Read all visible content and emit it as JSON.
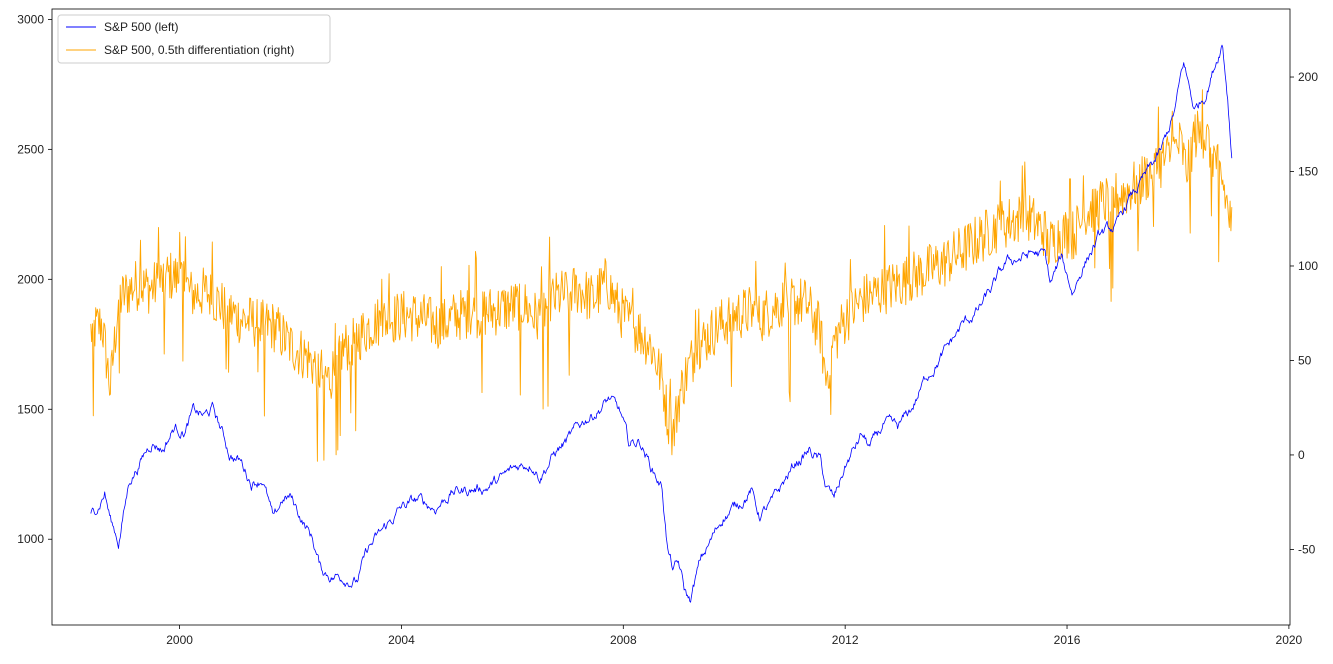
{
  "chart_data": {
    "type": "line",
    "title": "",
    "xlabel": "",
    "ylabel_left": "",
    "ylabel_right": "",
    "x_ticks": [
      "2000",
      "2004",
      "2008",
      "2012",
      "2016",
      "2020"
    ],
    "x_range": [
      1997.7,
      2020.02
    ],
    "left_axis": {
      "range": [
        670,
        3040
      ],
      "ticks": [
        "1000",
        "1500",
        "2000",
        "2500",
        "3000"
      ]
    },
    "right_axis": {
      "range": [
        -90,
        236
      ],
      "ticks": [
        "-50",
        "0",
        "50",
        "100",
        "150",
        "200"
      ]
    },
    "grid": false,
    "legend_position": "top-left",
    "series": [
      {
        "name": "S&P 500 (left)",
        "axis": "left",
        "color": "#0000ff",
        "x": [
          1998.4,
          1998.55,
          1998.65,
          1998.75,
          1998.9,
          1999.1,
          1999.3,
          1999.5,
          1999.7,
          1999.9,
          2000.1,
          2000.25,
          2000.45,
          2000.6,
          2000.75,
          2000.9,
          2001.1,
          2001.3,
          2001.5,
          2001.7,
          2001.85,
          2002.0,
          2002.2,
          2002.4,
          2002.55,
          2002.75,
          2002.95,
          2003.2,
          2003.4,
          2003.7,
          2004.0,
          2004.3,
          2004.6,
          2004.9,
          2005.2,
          2005.5,
          2005.8,
          2006.1,
          2006.35,
          2006.5,
          2006.8,
          2007.1,
          2007.3,
          2007.55,
          2007.75,
          2007.95,
          2008.1,
          2008.3,
          2008.5,
          2008.7,
          2008.8,
          2008.9,
          2009.0,
          2009.1,
          2009.2,
          2009.4,
          2009.6,
          2009.8,
          2010.0,
          2010.3,
          2010.45,
          2010.7,
          2010.9,
          2011.1,
          2011.35,
          2011.55,
          2011.65,
          2011.8,
          2012.0,
          2012.3,
          2012.45,
          2012.7,
          2012.95,
          2013.2,
          2013.5,
          2013.8,
          2014.1,
          2014.4,
          2014.7,
          2014.9,
          2015.1,
          2015.4,
          2015.6,
          2015.7,
          2015.9,
          2016.1,
          2016.3,
          2016.6,
          2016.9,
          2017.1,
          2017.4,
          2017.7,
          2017.95,
          2018.1,
          2018.3,
          2018.5,
          2018.7,
          2018.8,
          2018.9,
          2018.97
        ],
        "values": [
          1090,
          1140,
          1185,
          1080,
          990,
          1230,
          1300,
          1380,
          1350,
          1430,
          1420,
          1490,
          1470,
          1500,
          1420,
          1330,
          1300,
          1220,
          1240,
          1060,
          1150,
          1160,
          1080,
          1000,
          880,
          860,
          860,
          840,
          960,
          1040,
          1120,
          1150,
          1120,
          1180,
          1190,
          1200,
          1230,
          1280,
          1300,
          1250,
          1340,
          1400,
          1460,
          1500,
          1540,
          1480,
          1360,
          1380,
          1280,
          1200,
          960,
          880,
          900,
          800,
          760,
          920,
          1000,
          1090,
          1120,
          1190,
          1090,
          1140,
          1220,
          1290,
          1340,
          1300,
          1200,
          1150,
          1280,
          1400,
          1350,
          1440,
          1420,
          1500,
          1640,
          1720,
          1820,
          1880,
          1980,
          2060,
          2080,
          2100,
          2090,
          1980,
          2080,
          1950,
          2060,
          2170,
          2200,
          2300,
          2390,
          2490,
          2650,
          2830,
          2650,
          2720,
          2850,
          2920,
          2700,
          2480
        ]
      },
      {
        "name": "S&P 500, 0.5th differentiation (right)",
        "axis": "right",
        "color": "#ffa500",
        "x": [
          1998.4,
          1998.6,
          1998.75,
          1998.9,
          1999.2,
          1999.5,
          1999.8,
          2000.1,
          2000.2,
          2000.5,
          2000.8,
          2001.1,
          2001.4,
          2001.7,
          2002.0,
          2002.3,
          2002.5,
          2002.7,
          2002.9,
          2003.2,
          2003.5,
          2003.8,
          2004.1,
          2004.4,
          2004.7,
          2005.0,
          2005.3,
          2005.6,
          2005.9,
          2006.2,
          2006.45,
          2006.7,
          2007.0,
          2007.2,
          2007.45,
          2007.7,
          2007.9,
          2008.1,
          2008.3,
          2008.5,
          2008.7,
          2008.8,
          2008.9,
          2009.0,
          2009.1,
          2009.3,
          2009.5,
          2009.7,
          2010.0,
          2010.3,
          2010.45,
          2010.7,
          2011.0,
          2011.3,
          2011.55,
          2011.65,
          2011.8,
          2012.0,
          2012.3,
          2012.6,
          2012.9,
          2013.2,
          2013.5,
          2013.8,
          2014.1,
          2014.4,
          2014.7,
          2015.0,
          2015.3,
          2015.6,
          2015.65,
          2015.9,
          2016.1,
          2016.4,
          2016.7,
          2017.0,
          2017.3,
          2017.6,
          2017.9,
          2018.05,
          2018.15,
          2018.3,
          2018.5,
          2018.7,
          2018.8,
          2018.9,
          2018.97
        ],
        "values": [
          65,
          70,
          35,
          82,
          90,
          88,
          95,
          92,
          85,
          86,
          78,
          72,
          70,
          68,
          58,
          52,
          45,
          40,
          55,
          62,
          70,
          72,
          74,
          72,
          68,
          74,
          75,
          76,
          78,
          80,
          72,
          82,
          86,
          88,
          82,
          92,
          78,
          70,
          65,
          58,
          40,
          20,
          10,
          30,
          40,
          55,
          62,
          68,
          74,
          76,
          72,
          78,
          82,
          80,
          66,
          40,
          60,
          72,
          82,
          86,
          90,
          94,
          98,
          102,
          108,
          114,
          120,
          124,
          126,
          118,
          110,
          118,
          116,
          130,
          134,
          138,
          144,
          152,
          160,
          165,
          150,
          170,
          168,
          155,
          145,
          130,
          120
        ]
      }
    ]
  }
}
